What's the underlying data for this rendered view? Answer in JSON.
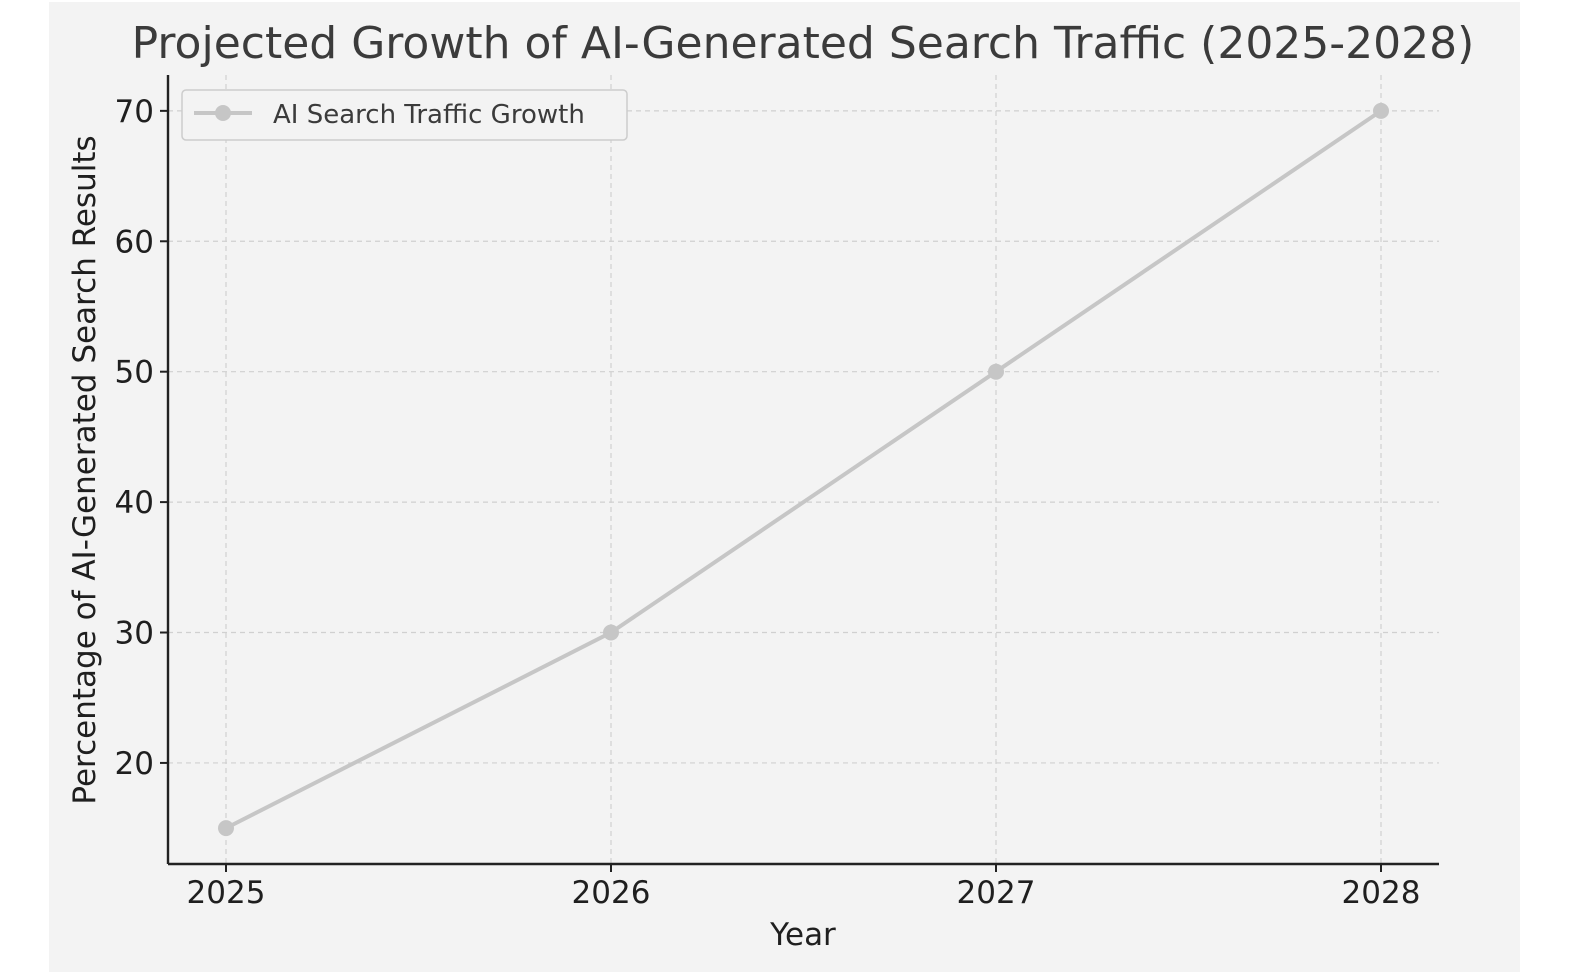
{
  "chart_data": {
    "type": "line",
    "title": "Projected Growth of AI-Generated Search Traffic (2025-2028)",
    "xlabel": "Year",
    "ylabel": "Percentage of AI-Generated Search Results",
    "categories": [
      "2025",
      "2026",
      "2027",
      "2028"
    ],
    "series": [
      {
        "name": "AI Search Traffic Growth",
        "values": [
          15,
          30,
          50,
          70
        ],
        "color": "#c6c6c6",
        "marker": "circle"
      }
    ],
    "yticks": [
      "20",
      "30",
      "40",
      "50",
      "60",
      "70"
    ],
    "ylim": [
      12.25,
      72.75
    ],
    "grid": true,
    "legend": {
      "position": "top-left"
    },
    "colors": {
      "background": "#f3f3f3",
      "grid": "#d0d0d0",
      "axis": "#222222"
    }
  }
}
